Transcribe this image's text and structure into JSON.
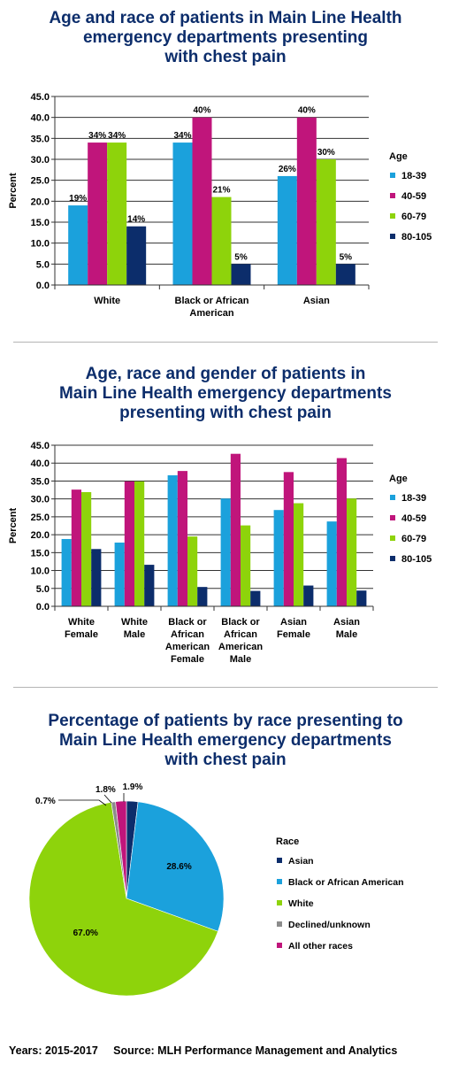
{
  "chart_data": [
    {
      "type": "bar",
      "title": [
        "Age and race of patients in Main Line Health",
        "emergency departments presenting",
        "with chest pain"
      ],
      "ylabel": "Percent",
      "ylim": [
        0,
        45
      ],
      "yticks": [
        "0.0",
        "5.0",
        "10.0",
        "15.0",
        "20.0",
        "25.0",
        "30.0",
        "35.0",
        "40.0",
        "45.0"
      ],
      "categories": [
        [
          "White"
        ],
        [
          "Black or African",
          "American"
        ],
        [
          "Asian"
        ]
      ],
      "legend_title": "Age",
      "series": [
        {
          "name": "18-39",
          "color": "#1ba1dc",
          "values": [
            19,
            34,
            26
          ],
          "labels": [
            "19%",
            "34%",
            "26%"
          ]
        },
        {
          "name": "40-59",
          "color": "#c0157b",
          "values": [
            34,
            40,
            40
          ],
          "labels": [
            "34%",
            "40%",
            "40%"
          ]
        },
        {
          "name": "60-79",
          "color": "#8ed30b",
          "values": [
            34,
            21,
            30
          ],
          "labels": [
            "34%",
            "21%",
            "30%"
          ]
        },
        {
          "name": "80-105",
          "color": "#0c2d6b",
          "values": [
            14,
            5,
            5
          ],
          "labels": [
            "14%",
            "5%",
            "5%"
          ]
        }
      ],
      "grid": true
    },
    {
      "type": "bar",
      "title": [
        "Age, race and gender of patients in",
        "Main Line Health emergency departments",
        "presenting with chest pain"
      ],
      "ylabel": "Percent",
      "ylim": [
        0,
        45
      ],
      "yticks": [
        "0.0",
        "5.0",
        "10.0",
        "15.0",
        "20.0",
        "25.0",
        "30.0",
        "35.0",
        "40.0",
        "45.0"
      ],
      "categories": [
        [
          "White",
          "Female"
        ],
        [
          "White",
          "Male"
        ],
        [
          "Black or",
          "African",
          "American",
          "Female"
        ],
        [
          "Black or",
          "African",
          "American",
          "Male"
        ],
        [
          "Asian",
          "Female"
        ],
        [
          "Asian",
          "Male"
        ]
      ],
      "legend_title": "Age",
      "series": [
        {
          "name": "18-39",
          "color": "#1ba1dc",
          "values": [
            18.8,
            17.8,
            36.6,
            30.1,
            26.9,
            23.7
          ]
        },
        {
          "name": "40-59",
          "color": "#c0157b",
          "values": [
            32.6,
            34.9,
            37.8,
            42.6,
            37.5,
            41.4
          ]
        },
        {
          "name": "60-79",
          "color": "#8ed30b",
          "values": [
            31.9,
            34.9,
            19.5,
            22.6,
            28.8,
            30.1
          ]
        },
        {
          "name": "80-105",
          "color": "#0c2d6b",
          "values": [
            16.0,
            11.6,
            5.4,
            4.3,
            5.8,
            4.4
          ]
        }
      ],
      "grid": true
    },
    {
      "type": "pie",
      "title": [
        "Percentage of patients by race presenting to",
        "Main Line Health emergency departments",
        "with chest pain"
      ],
      "legend_title": "Race",
      "slices": [
        {
          "name": "Asian",
          "value": 1.9,
          "label": "1.9%",
          "color": "#0c2d6b"
        },
        {
          "name": "Black or African American",
          "value": 28.6,
          "label": "28.6%",
          "color": "#1ba1dc"
        },
        {
          "name": "White",
          "value": 67.0,
          "label": "67.0%",
          "color": "#8ed30b"
        },
        {
          "name": "Declined/unknown",
          "value": 0.7,
          "label": "0.7%",
          "color": "#8c8c8c"
        },
        {
          "name": "All other races",
          "value": 1.8,
          "label": "1.8%",
          "color": "#c0157b"
        }
      ]
    }
  ],
  "footer": {
    "years": "Years: 2015-2017",
    "source": "Source: MLH Performance Management and Analytics"
  }
}
